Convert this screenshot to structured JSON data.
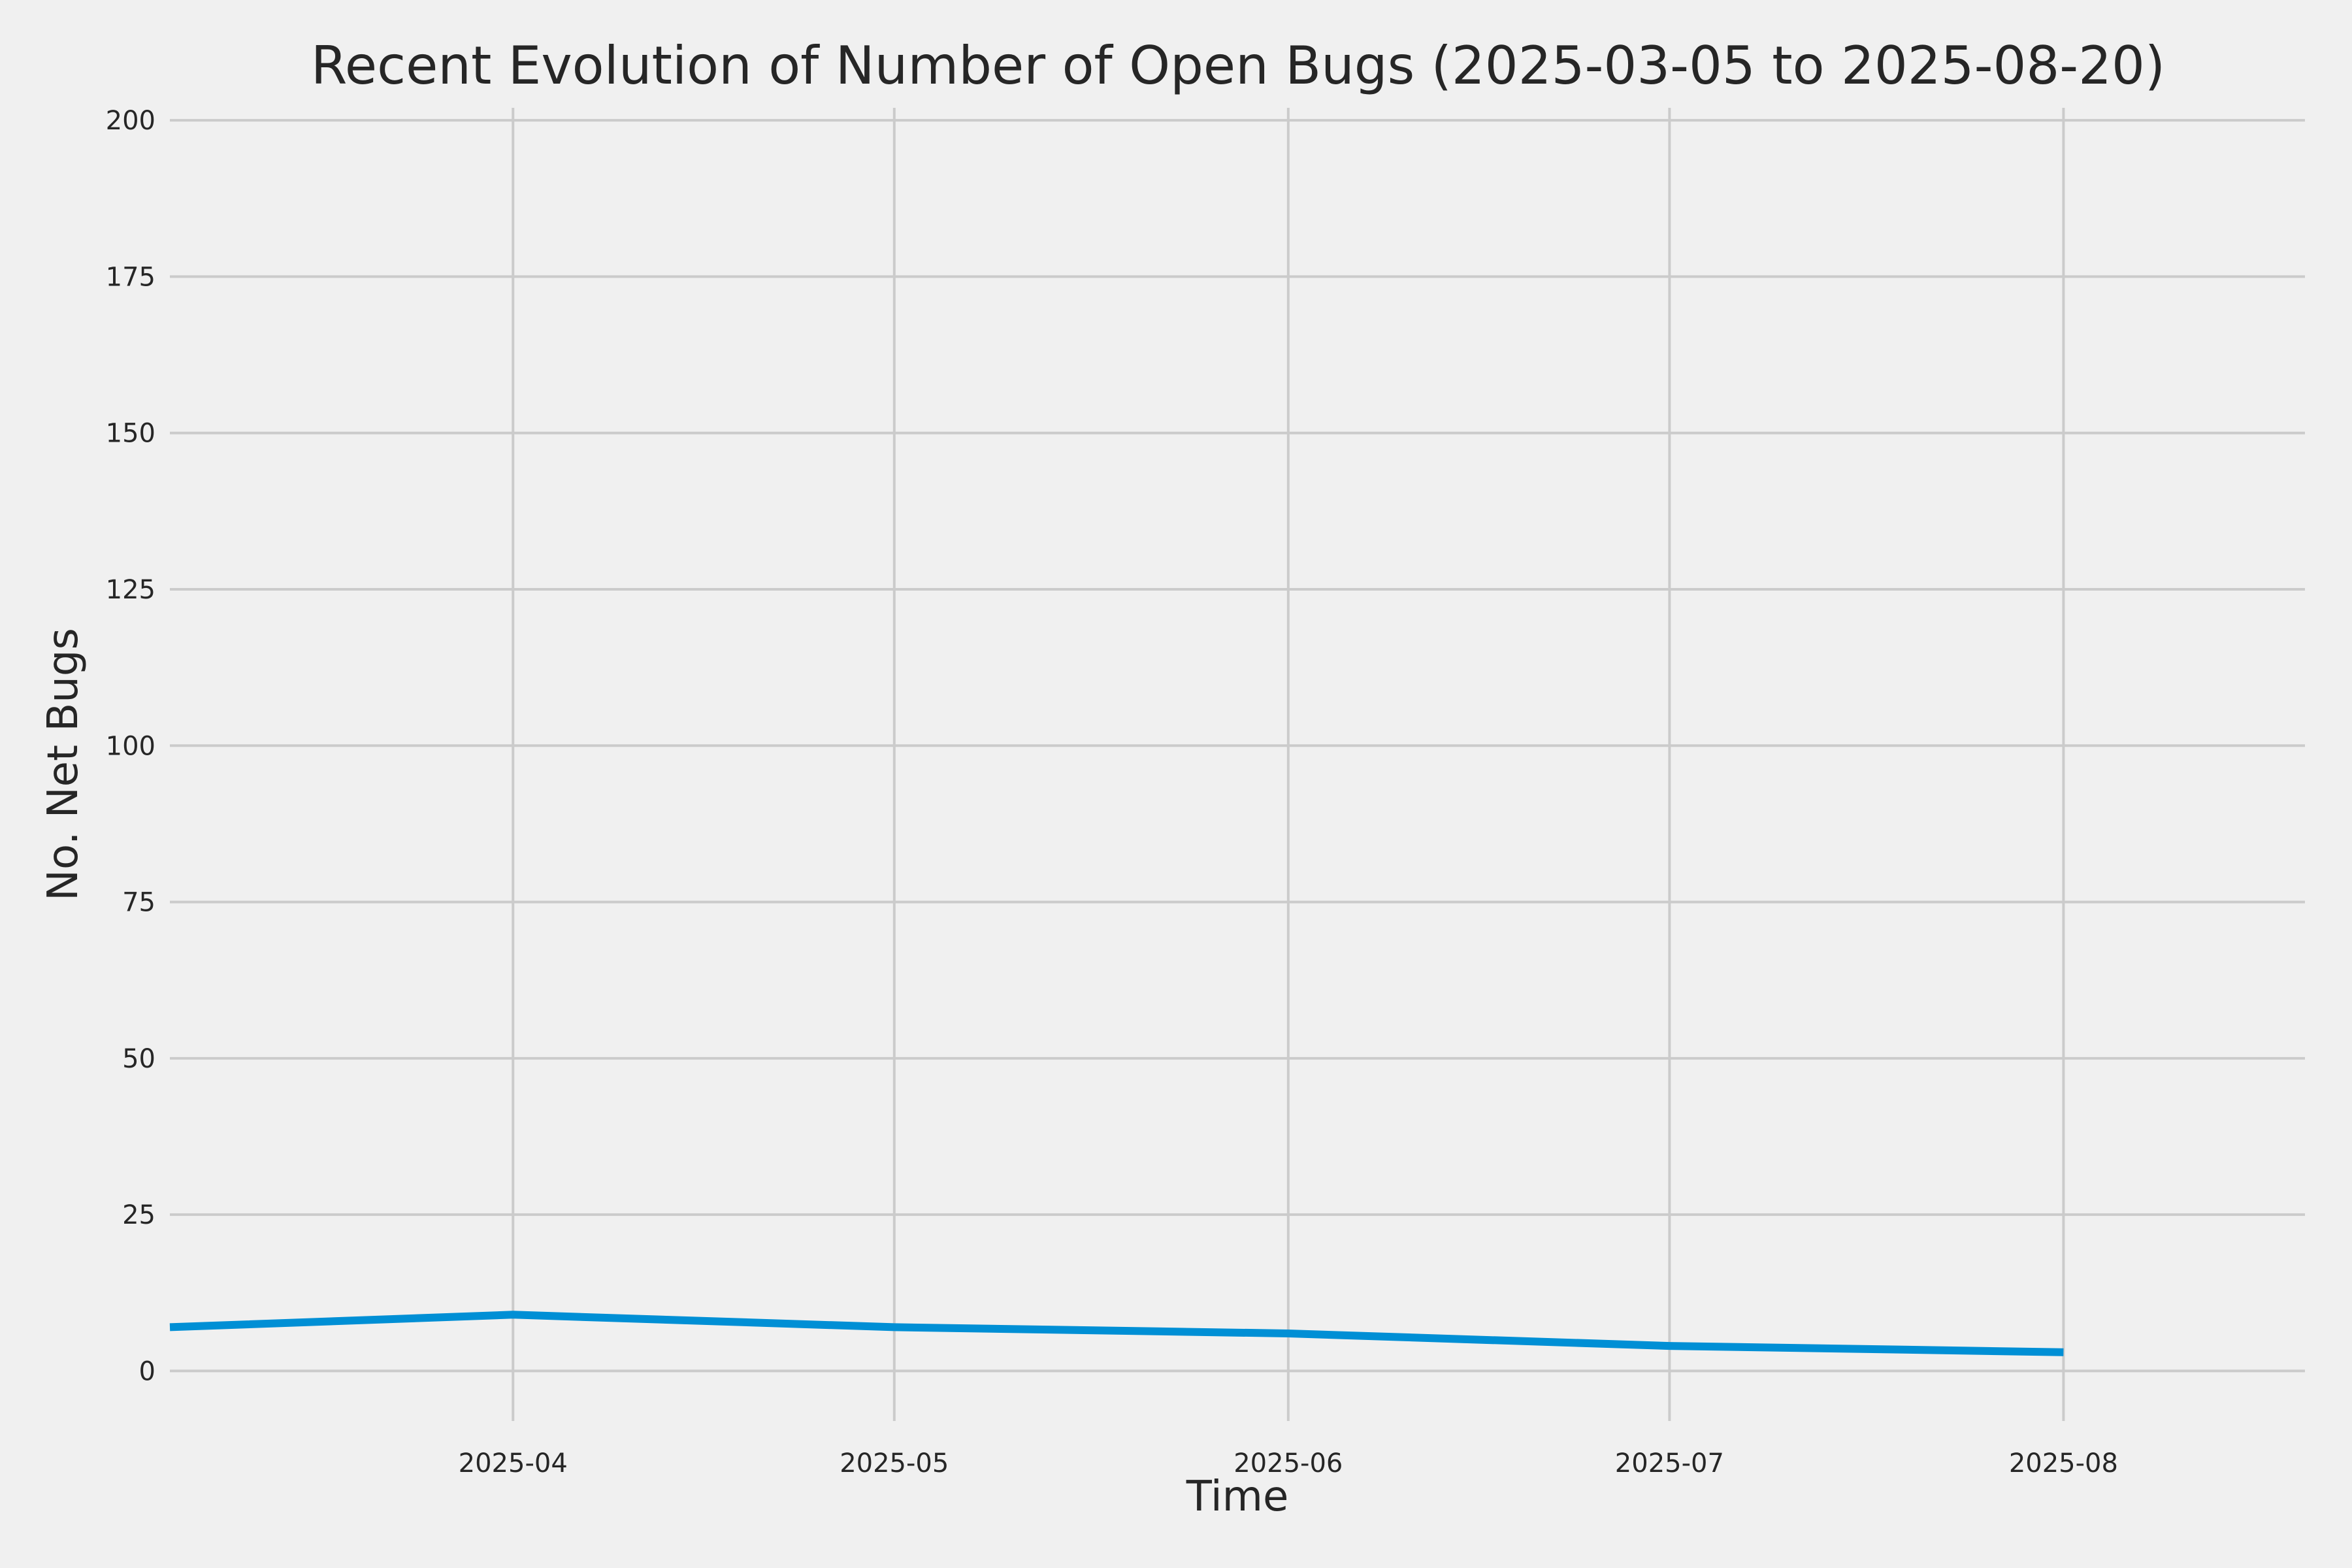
{
  "chart_data": {
    "type": "line",
    "title": "Recent Evolution of Number of Open Bugs (2025-03-05 to 2025-08-20)",
    "xlabel": "Time",
    "ylabel": "No. Net Bugs",
    "x_axis_kind": "date",
    "xlim": [
      "2025-03-05",
      "2025-08-20"
    ],
    "ylim": [
      -8,
      202
    ],
    "x_ticks": [
      {
        "value": "2025-04-01",
        "label": "2025-04"
      },
      {
        "value": "2025-05-01",
        "label": "2025-05"
      },
      {
        "value": "2025-06-01",
        "label": "2025-06"
      },
      {
        "value": "2025-07-01",
        "label": "2025-07"
      },
      {
        "value": "2025-08-01",
        "label": "2025-08"
      }
    ],
    "y_ticks": [
      0,
      25,
      50,
      75,
      100,
      125,
      150,
      175,
      200
    ],
    "grid": true,
    "legend": "none",
    "series": [
      {
        "color": "#008fd5",
        "points": [
          {
            "x": "2025-03-05",
            "y": 7
          },
          {
            "x": "2025-04-01",
            "y": 9
          },
          {
            "x": "2025-05-01",
            "y": 7
          },
          {
            "x": "2025-06-01",
            "y": 6
          },
          {
            "x": "2025-07-01",
            "y": 4
          },
          {
            "x": "2025-08-01",
            "y": 3
          }
        ]
      }
    ]
  }
}
